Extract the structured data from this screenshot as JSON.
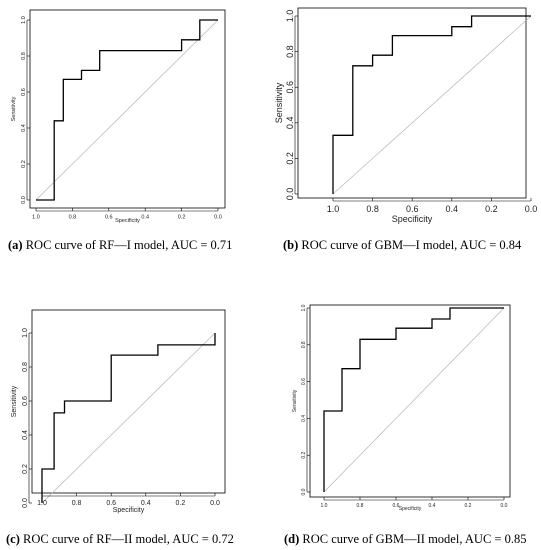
{
  "chart_data": [
    {
      "id": "a",
      "type": "line",
      "caption_letter": "(a)",
      "caption_text": " ROC curve of RF—I model, AUC = 0.71",
      "xlabel": "Specificity",
      "ylabel": "Sensitivity",
      "xlim": [
        1.0,
        0.0
      ],
      "ylim": [
        0.0,
        1.0
      ],
      "x_ticks": [
        "1.0",
        "0.8",
        "0.6",
        "0.4",
        "0.2",
        "0.0"
      ],
      "y_ticks": [
        "0.0",
        "0.2",
        "0.4",
        "0.6",
        "0.8",
        "1.0"
      ],
      "grid": false,
      "series": [
        {
          "x": [
            1.0,
            0.9,
            0.9,
            0.85,
            0.85,
            0.75,
            0.75,
            0.65,
            0.65,
            0.2,
            0.2,
            0.1,
            0.1,
            0.0
          ],
          "y": [
            0.0,
            0.0,
            0.44,
            0.44,
            0.67,
            0.67,
            0.72,
            0.72,
            0.83,
            0.83,
            0.89,
            0.89,
            1.0,
            1.0
          ]
        }
      ]
    },
    {
      "id": "b",
      "type": "line",
      "caption_letter": "(b)",
      "caption_text": " ROC curve of GBM—I model, AUC = 0.84",
      "xlabel": "Specificity",
      "ylabel": "Sensitivity",
      "xlim": [
        1.0,
        0.0
      ],
      "ylim": [
        0.0,
        1.0
      ],
      "x_ticks": [
        "1.0",
        "0.8",
        "0.6",
        "0.4",
        "0.2",
        "0.0"
      ],
      "y_ticks": [
        "0.0",
        "0.2",
        "0.4",
        "0.6",
        "0.8",
        "1.0"
      ],
      "grid": false,
      "series": [
        {
          "x": [
            1.0,
            1.0,
            0.9,
            0.9,
            0.8,
            0.8,
            0.7,
            0.7,
            0.4,
            0.4,
            0.3,
            0.3,
            0.0
          ],
          "y": [
            0.0,
            0.33,
            0.33,
            0.72,
            0.72,
            0.78,
            0.78,
            0.89,
            0.89,
            0.94,
            0.94,
            1.0,
            1.0
          ]
        }
      ]
    },
    {
      "id": "c",
      "type": "line",
      "caption_letter": "(c)",
      "caption_text": " ROC curve of RF—II model, AUC = 0.72",
      "xlabel": "Specificity",
      "ylabel": "Sensitivity",
      "xlim": [
        1.0,
        0.0
      ],
      "ylim": [
        0.0,
        1.0
      ],
      "x_ticks": [
        "1.0",
        "0.8",
        "0.6",
        "0.4",
        "0.2",
        "0.0"
      ],
      "y_ticks": [
        "0.0",
        "0.2",
        "0.4",
        "0.6",
        "0.8",
        "1.0"
      ],
      "grid": false,
      "series": [
        {
          "x": [
            1.0,
            1.0,
            0.93,
            0.93,
            0.87,
            0.87,
            0.6,
            0.6,
            0.33,
            0.33,
            0.0,
            0.0
          ],
          "y": [
            0.0,
            0.2,
            0.2,
            0.53,
            0.53,
            0.6,
            0.6,
            0.87,
            0.87,
            0.93,
            0.93,
            1.0
          ]
        }
      ]
    },
    {
      "id": "d",
      "type": "line",
      "caption_letter": "(d)",
      "caption_text": " ROC curve of GBM—II model, AUC = 0.85",
      "xlabel": "Specificity",
      "ylabel": "Sensitivity",
      "xlim": [
        1.0,
        0.0
      ],
      "ylim": [
        0.0,
        1.0
      ],
      "x_ticks": [
        "1.0",
        "0.8",
        "0.6",
        "0.4",
        "0.2",
        "0.0"
      ],
      "y_ticks": [
        "0.0",
        "0.2",
        "0.4",
        "0.6",
        "0.8",
        "1.0"
      ],
      "grid": false,
      "series": [
        {
          "x": [
            1.0,
            1.0,
            0.9,
            0.9,
            0.8,
            0.8,
            0.6,
            0.6,
            0.4,
            0.4,
            0.3,
            0.3,
            0.0
          ],
          "y": [
            0.0,
            0.44,
            0.44,
            0.67,
            0.67,
            0.83,
            0.83,
            0.89,
            0.89,
            0.94,
            0.94,
            1.0,
            1.0
          ]
        }
      ]
    }
  ]
}
